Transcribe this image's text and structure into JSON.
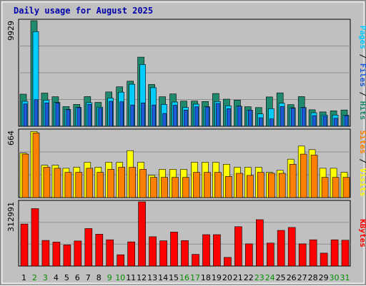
{
  "chart_data": {
    "type": "bar",
    "title": "Daily usage for August 2025",
    "categories": [
      "1",
      "2",
      "3",
      "4",
      "5",
      "6",
      "7",
      "8",
      "9",
      "10",
      "11",
      "12",
      "13",
      "14",
      "15",
      "16",
      "17",
      "18",
      "19",
      "20",
      "21",
      "22",
      "23",
      "24",
      "25",
      "26",
      "27",
      "28",
      "29",
      "30",
      "31"
    ],
    "weekend_days": [
      "2",
      "3",
      "9",
      "10",
      "16",
      "17",
      "23",
      "24",
      "30",
      "31"
    ],
    "colors": {
      "hits": "#1f8a6e",
      "files": "#00ccff",
      "pages": "#1e5ad8",
      "visits": "#ffff00",
      "sites": "#ff8000",
      "kbytes": "#ff0000",
      "weekday_label": "#000000",
      "weekend_label": "#009000",
      "plot_bg": "#c0c0c0",
      "frame_bg": "#c0c0c0"
    },
    "panels": [
      {
        "id": "hits-files-pages",
        "ymax_label": "9929",
        "ymax": 9929,
        "legend": [
          {
            "text": "Pages",
            "color": "#00ccff"
          },
          {
            "text": " / ",
            "color": "#000000"
          },
          {
            "text": "Files",
            "color": "#1e5ad8"
          },
          {
            "text": " / ",
            "color": "#000000"
          },
          {
            "text": "Hits",
            "color": "#1f8a6e"
          }
        ],
        "series": [
          {
            "name": "Hits",
            "values": [
              3020,
              9929,
              3120,
              2780,
              1850,
              2050,
              2790,
              2250,
              3230,
              3710,
              4240,
              6500,
              3930,
              2780,
              3040,
              2370,
              2370,
              2330,
              3080,
              2550,
              2460,
              1840,
              1760,
              2760,
              3140,
              2030,
              2790,
              1550,
              1350,
              1450,
              1530
            ]
          },
          {
            "name": "Files",
            "values": [
              2350,
              8900,
              2450,
              2240,
              1580,
              1780,
              2220,
              1800,
              2650,
              3210,
              3950,
              5800,
              3630,
              2050,
              2280,
              1770,
              2080,
              1830,
              2330,
              1930,
              1880,
              1510,
              1160,
              1660,
              2170,
              1740,
              1770,
              1270,
              1050,
              1050,
              1050
            ]
          },
          {
            "name": "Pages",
            "values": [
              2100,
              2500,
              2200,
              2200,
              1550,
              1750,
              2050,
              1700,
              2350,
              2300,
              2000,
              2200,
              2000,
              1200,
              1980,
              1520,
              1830,
              1810,
              2150,
              1650,
              1900,
              1520,
              800,
              700,
              1850,
              1700,
              1750,
              1000,
              940,
              750,
              990
            ]
          }
        ]
      },
      {
        "id": "visits-sites",
        "ymax_label": "664",
        "ymax": 664,
        "legend": [
          {
            "text": "Sites",
            "color": "#ff8000"
          },
          {
            "text": " / ",
            "color": "#000000"
          },
          {
            "text": "Visits",
            "color": "#ffff00"
          }
        ],
        "series": [
          {
            "name": "Visits",
            "values": [
              440,
              655,
              320,
              320,
              290,
              300,
              350,
              300,
              350,
              350,
              465,
              350,
              220,
              280,
              280,
              280,
              350,
              350,
              350,
              330,
              300,
              300,
              300,
              250,
              270,
              380,
              510,
              475,
              290,
              290,
              250
            ]
          },
          {
            "name": "Sites",
            "values": [
              430,
              640,
              300,
              290,
              250,
              250,
              290,
              250,
              280,
              300,
              300,
              280,
              200,
              200,
              200,
              200,
              250,
              250,
              250,
              210,
              240,
              220,
              250,
              240,
              240,
              330,
              430,
              420,
              200,
              200,
              200
            ]
          }
        ]
      },
      {
        "id": "kbytes",
        "ymax_label": "312991",
        "ymax": 312991,
        "legend": [
          {
            "text": "KBytes",
            "color": "#ff0000"
          }
        ],
        "series": [
          {
            "name": "KBytes",
            "values": [
              205000,
              280000,
              125000,
              117000,
              103000,
              122000,
              183000,
              155000,
              128000,
              55000,
              118000,
              312991,
              143000,
              123000,
              166000,
              124000,
              57000,
              153000,
              153000,
              42000,
              192000,
              108000,
              226000,
              112000,
              174000,
              188000,
              108000,
              128000,
              63000,
              128000,
              126000
            ]
          }
        ]
      }
    ]
  }
}
